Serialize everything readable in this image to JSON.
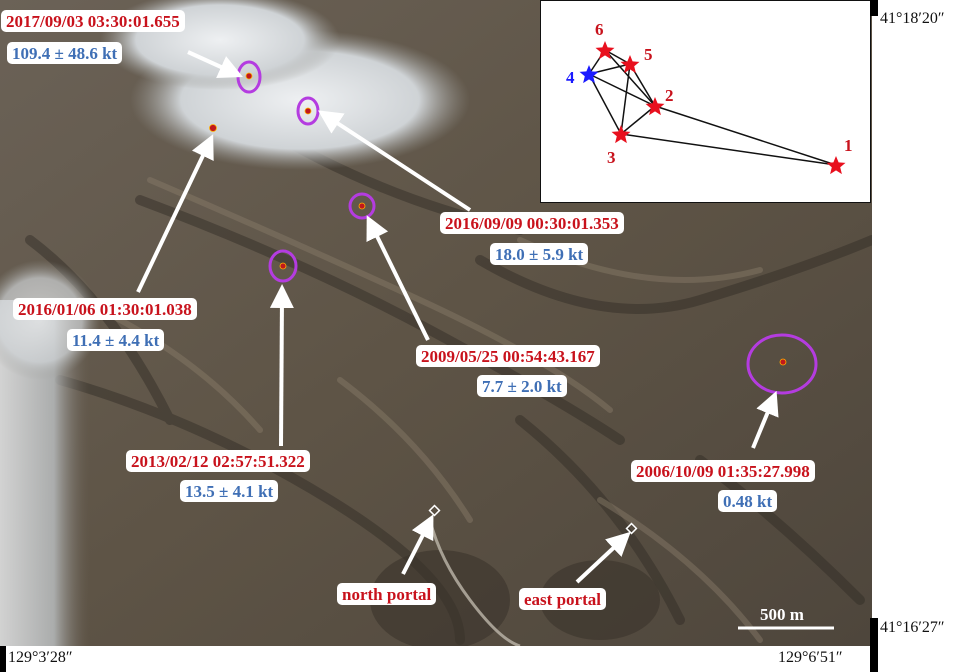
{
  "events": [
    {
      "id": "2017",
      "datetime": "2017/09/03 03:30:01.655",
      "yield": "109.4 ± 48.6 kt"
    },
    {
      "id": "2016b",
      "datetime": "2016/09/09 00:30:01.353",
      "yield": "18.0 ± 5.9 kt"
    },
    {
      "id": "2016a",
      "datetime": "2016/01/06 01:30:01.038",
      "yield": "11.4 ± 4.4 kt"
    },
    {
      "id": "2009",
      "datetime": "2009/05/25 00:54:43.167",
      "yield": "7.7 ± 2.0 kt"
    },
    {
      "id": "2013",
      "datetime": "2013/02/12 02:57:51.322",
      "yield": "13.5 ± 4.1 kt"
    },
    {
      "id": "2006",
      "datetime": "2006/10/09 01:35:27.998",
      "yield": "0.48 kt"
    }
  ],
  "portals": {
    "north": "north portal",
    "east": "east portal"
  },
  "scale_bar": "500 m",
  "coordinates": {
    "top_right_lat": "41°18′20″",
    "bottom_right_lat": "41°16′27″",
    "bottom_left_lon": "129°3′28″",
    "bottom_right_lon": "129°6′51″"
  },
  "inset": {
    "labels": [
      "1",
      "2",
      "3",
      "4",
      "5",
      "6"
    ],
    "colors": {
      "red": "#e8101e",
      "blue": "#1a1aff"
    }
  },
  "colors": {
    "marker_ring": "#b43ce0",
    "label_red": "#c8121c",
    "label_blue": "#3f6fb5"
  }
}
